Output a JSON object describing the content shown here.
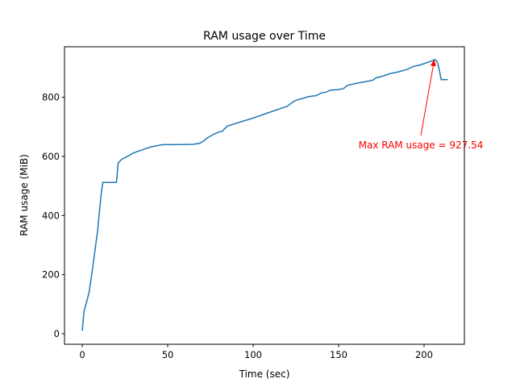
{
  "chart_data": {
    "type": "line",
    "title": "RAM usage over Time",
    "xlabel": "Time (sec)",
    "ylabel": "RAM usage (MiB)",
    "x": [
      0,
      1,
      4,
      6,
      9,
      11,
      12,
      20,
      21,
      23,
      27,
      30,
      35,
      40,
      47,
      55,
      65,
      69,
      71,
      73,
      77,
      80,
      82,
      83,
      85,
      90,
      100,
      110,
      118,
      120,
      123,
      125,
      130,
      132,
      137,
      140,
      143,
      145,
      150,
      153,
      155,
      160,
      165,
      170,
      172,
      175,
      180,
      185,
      190,
      193,
      198,
      203,
      205,
      206,
      207,
      208,
      209,
      210,
      214
    ],
    "values": [
      10,
      75,
      140,
      220,
      350,
      470,
      512,
      512,
      578,
      590,
      602,
      612,
      622,
      632,
      640,
      640,
      641,
      645,
      652,
      662,
      675,
      683,
      685,
      692,
      703,
      712,
      730,
      750,
      766,
      770,
      783,
      790,
      798,
      802,
      806,
      815,
      818,
      824,
      826,
      830,
      840,
      847,
      852,
      858,
      866,
      870,
      880,
      886,
      894,
      903,
      910,
      920,
      924,
      927.54,
      926,
      915,
      890,
      860,
      860
    ],
    "color": "#1f77b4",
    "annotation": "Max RAM usage = 927.54",
    "annotation_color": "#ff0000",
    "xlim": [
      -10.4,
      223.6
    ],
    "xticks": [
      0,
      50,
      100,
      150,
      200
    ],
    "ylim": [
      -35.5,
      971
    ],
    "yticks": [
      0,
      200,
      400,
      600,
      800
    ],
    "grid": false
  }
}
